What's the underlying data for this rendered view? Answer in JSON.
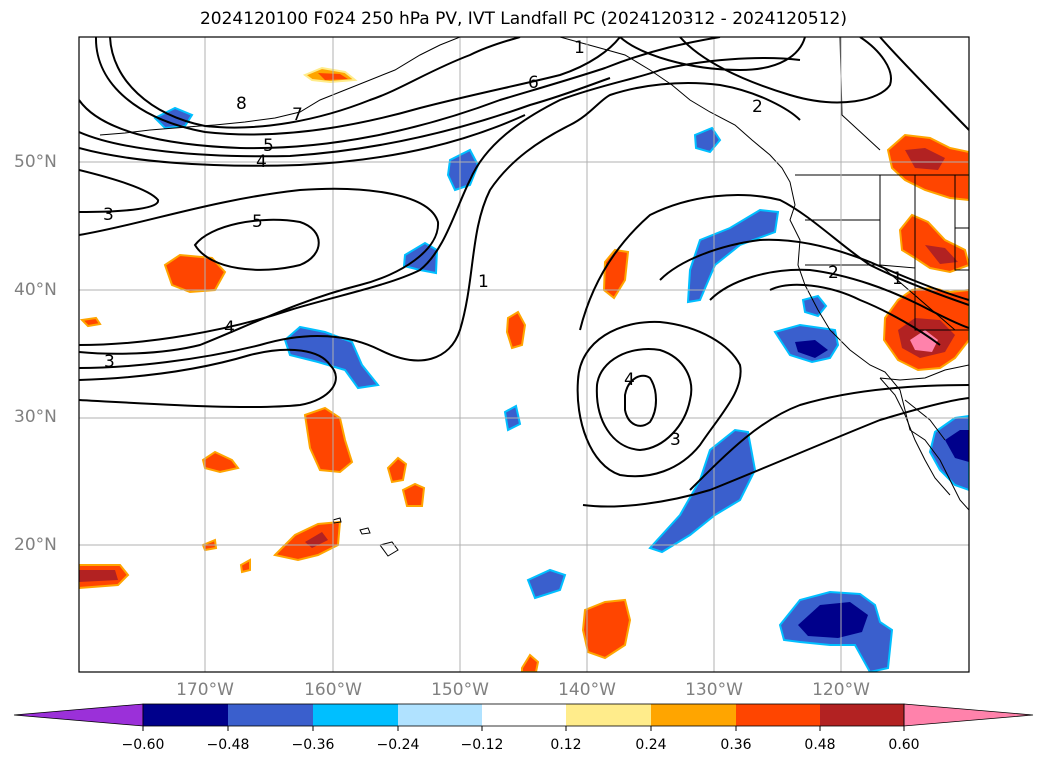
{
  "title": "2024120100 F024 250 hPa PV, IVT Landfall PC (2024120312 - 2024120512)",
  "lat_labels": [
    "50°N",
    "40°N",
    "30°N",
    "20°N"
  ],
  "lon_labels": [
    "170°W",
    "160°W",
    "150°W",
    "140°W",
    "130°W",
    "120°W"
  ],
  "colorbar": {
    "tick_labels": [
      "−0.60",
      "−0.48",
      "−0.36",
      "−0.24",
      "−0.12",
      "0.12",
      "0.24",
      "0.36",
      "0.48",
      "0.60"
    ],
    "colors": [
      "#9b30d9",
      "#00008b",
      "#3a5fcd",
      "#00bfff",
      "#b0e2ff",
      "#ffffff",
      "#ffec8b",
      "#ffa500",
      "#ff4500",
      "#b22222",
      "#ff82ab"
    ]
  },
  "contour_labels": [
    "1",
    "6",
    "2",
    "8",
    "7",
    "5",
    "4",
    "3",
    "5",
    "1",
    "4",
    "3",
    "4",
    "3",
    "2",
    "1"
  ]
}
